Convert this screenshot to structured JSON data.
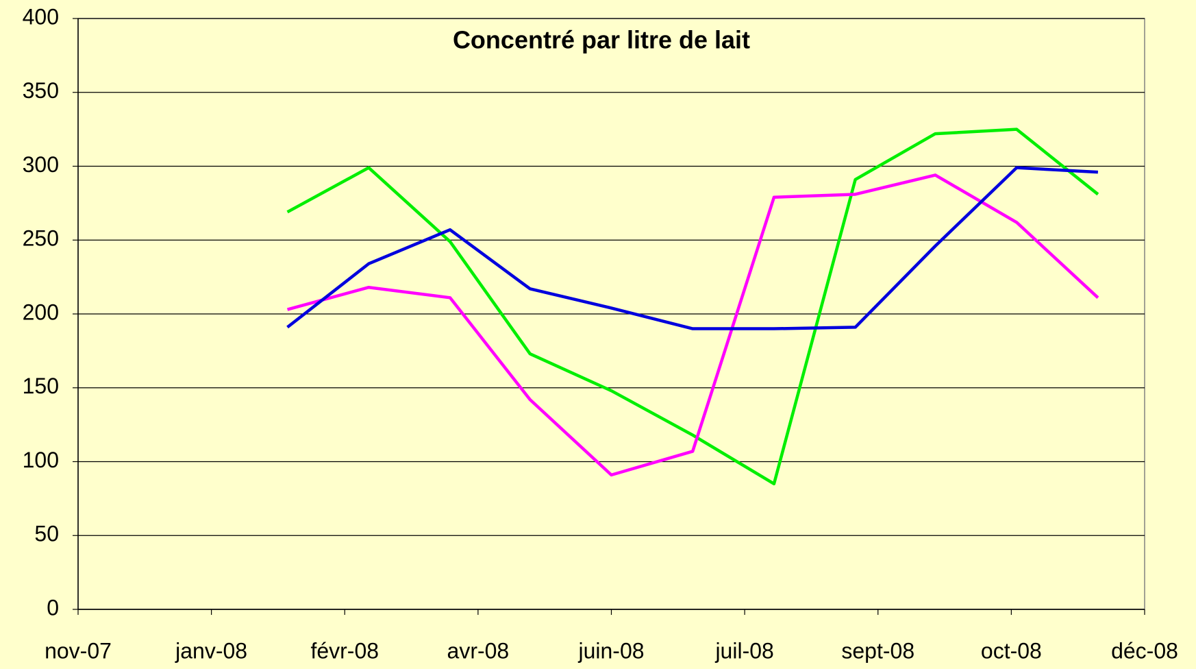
{
  "chart_data": {
    "type": "line",
    "title": "Concentré par litre de lait",
    "x": [
      1.57,
      2.18,
      2.79,
      3.39,
      4.0,
      4.61,
      5.22,
      5.83,
      6.43,
      7.04,
      7.65
    ],
    "series": [
      {
        "color": "#00ee00",
        "values": [
          269,
          299,
          249,
          173,
          148,
          118,
          85,
          291,
          322,
          325,
          281
        ]
      },
      {
        "color": "#ff00ff",
        "values": [
          203,
          218,
          211,
          142,
          91,
          107,
          279,
          281,
          294,
          262,
          211
        ]
      },
      {
        "color": "#0000dd",
        "values": [
          191,
          234,
          257,
          217,
          204,
          190,
          190,
          191,
          246,
          299,
          296
        ]
      }
    ],
    "xlim": [
      0,
      8
    ],
    "xticks": [
      {
        "value": 0,
        "label": "nov-07"
      },
      {
        "value": 1,
        "label": "janv-08"
      },
      {
        "value": 2,
        "label": "févr-08"
      },
      {
        "value": 3,
        "label": "avr-08"
      },
      {
        "value": 4,
        "label": "juin-08"
      },
      {
        "value": 5,
        "label": "juil-08"
      },
      {
        "value": 6,
        "label": "sept-08"
      },
      {
        "value": 7,
        "label": "oct-08"
      },
      {
        "value": 8,
        "label": "déc-08"
      }
    ],
    "ylim": [
      0,
      400
    ],
    "yticks": [
      0,
      50,
      100,
      150,
      200,
      250,
      300,
      350,
      400
    ],
    "grid": true
  }
}
